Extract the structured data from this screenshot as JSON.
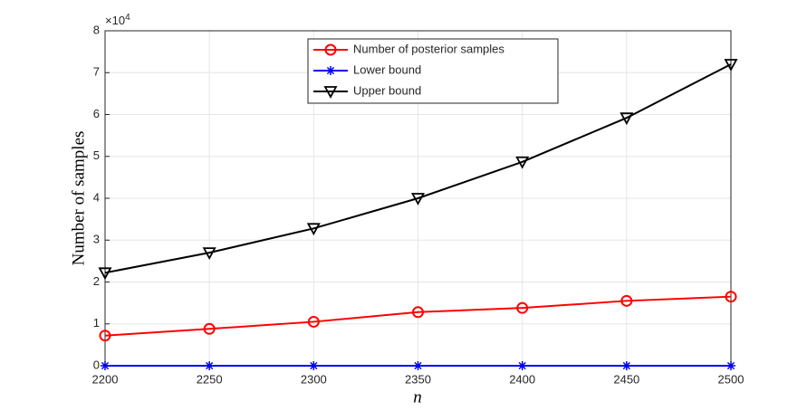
{
  "chart_data": {
    "type": "line",
    "y_label": "Number of samples",
    "x_label": "n",
    "y_scale_label": {
      "base": "×10",
      "exponent": "4"
    },
    "x": [
      2200,
      2250,
      2300,
      2350,
      2400,
      2450,
      2500
    ],
    "series": [
      {
        "name": "Number of posterior samples",
        "color": "#ff0000",
        "marker": "circle",
        "values": [
          0.72,
          0.88,
          1.05,
          1.28,
          1.38,
          1.55,
          1.65
        ]
      },
      {
        "name": "Lower bound",
        "color": "#0000ff",
        "marker": "asterisk",
        "values": [
          0,
          0,
          0,
          0,
          0,
          0,
          0
        ]
      },
      {
        "name": "Upper bound",
        "color": "#000000",
        "marker": "triangle-down",
        "values": [
          2.22,
          2.7,
          3.28,
          4.0,
          4.87,
          5.92,
          7.2
        ]
      }
    ],
    "xlim": [
      2200,
      2500
    ],
    "xticks": [
      2200,
      2250,
      2300,
      2350,
      2400,
      2450,
      2500
    ],
    "ylim": [
      0,
      8
    ],
    "yticks": [
      0,
      1,
      2,
      3,
      4,
      5,
      6,
      7,
      8
    ],
    "grid": true,
    "legend_position": "top"
  }
}
